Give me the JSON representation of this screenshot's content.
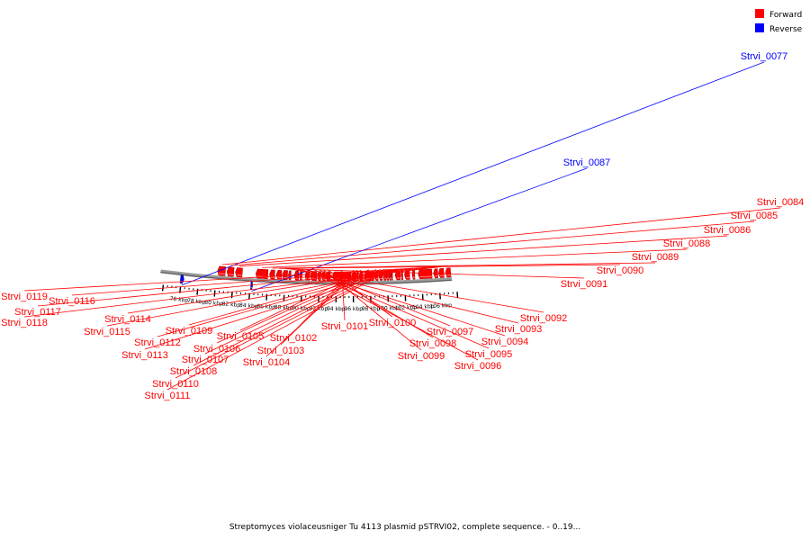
{
  "legend": [
    {
      "label": "Forward",
      "color": "#ff0000"
    },
    {
      "label": "Reverse",
      "color": "#0000ff"
    }
  ],
  "caption": "Streptomyces violaceusniger Tu 4113 plasmid pSTRVI02, complete sequence. - 0..19...",
  "colors": {
    "forward": "#ff0000",
    "reverse": "#0000ff",
    "backbone": "#808080",
    "tick": "#000000"
  },
  "ticks": [
    {
      "kbp": 76,
      "label": "76 kbp"
    },
    {
      "kbp": 78,
      "label": "78 kbp"
    },
    {
      "kbp": 80,
      "label": "80 kbp"
    },
    {
      "kbp": 82,
      "label": "82 kbp"
    },
    {
      "kbp": 84,
      "label": "84 kbp"
    },
    {
      "kbp": 86,
      "label": "86 kbp"
    },
    {
      "kbp": 88,
      "label": "88 kbp"
    },
    {
      "kbp": 90,
      "label": "90 kbp"
    },
    {
      "kbp": 92,
      "label": "92 kbp"
    },
    {
      "kbp": 94,
      "label": "94 kbp"
    },
    {
      "kbp": 96,
      "label": "96 kbp"
    },
    {
      "kbp": 98,
      "label": "98 kbp"
    },
    {
      "kbp": 100,
      "label": "100 kbp"
    },
    {
      "kbp": 102,
      "label": "102 kbp"
    },
    {
      "kbp": 104,
      "label": "104 kbp"
    },
    {
      "kbp": 106,
      "label": "106 kbp"
    }
  ],
  "genes": [
    {
      "name": "Strvi_0077",
      "strand": "reverse",
      "start": 75.9,
      "end": 76.3
    },
    {
      "name": "Strvi_0084",
      "strand": "forward",
      "start": 80.1,
      "end": 81.0
    },
    {
      "name": "Strvi_0085",
      "strand": "forward",
      "start": 81.2,
      "end": 82.0
    },
    {
      "name": "Strvi_0086",
      "strand": "forward",
      "start": 82.2,
      "end": 83.0
    },
    {
      "name": "Strvi_0087",
      "strand": "reverse",
      "start": 84.1,
      "end": 84.3
    },
    {
      "name": "Strvi_0088",
      "strand": "forward",
      "start": 84.6,
      "end": 86.0
    },
    {
      "name": "Strvi_0089",
      "strand": "forward",
      "start": 86.2,
      "end": 86.8
    },
    {
      "name": "Strvi_0090",
      "strand": "forward",
      "start": 87.0,
      "end": 87.6
    },
    {
      "name": "Strvi_0091",
      "strand": "forward",
      "start": 87.7,
      "end": 88.3
    },
    {
      "name": "Strvi_0092",
      "strand": "forward",
      "start": 88.4,
      "end": 88.7
    },
    {
      "name": "Strvi_0093",
      "strand": "forward",
      "start": 89.1,
      "end": 89.6
    },
    {
      "name": "Strvi_0094",
      "strand": "forward",
      "start": 89.7,
      "end": 90.0
    },
    {
      "name": "Strvi_0095",
      "strand": "forward",
      "start": 90.4,
      "end": 90.6
    },
    {
      "name": "Strvi_0096",
      "strand": "forward",
      "start": 90.6,
      "end": 90.9
    },
    {
      "name": "Strvi_0097",
      "strand": "forward",
      "start": 91.0,
      "end": 91.7
    },
    {
      "name": "Strvi_0098",
      "strand": "forward",
      "start": 91.8,
      "end": 92.2
    },
    {
      "name": "Strvi_0099",
      "strand": "forward",
      "start": 92.3,
      "end": 92.7
    },
    {
      "name": "Strvi_0100",
      "strand": "forward",
      "start": 92.8,
      "end": 93.3
    },
    {
      "name": "Strvi_0101",
      "strand": "forward",
      "start": 93.6,
      "end": 95.7
    },
    {
      "name": "Strvi_0102",
      "strand": "forward",
      "start": 95.8,
      "end": 96.3
    },
    {
      "name": "Strvi_0103",
      "strand": "forward",
      "start": 96.4,
      "end": 96.6
    },
    {
      "name": "Strvi_0104",
      "strand": "forward",
      "start": 96.7,
      "end": 97.1
    },
    {
      "name": "Strvi_0105",
      "strand": "forward",
      "start": 97.3,
      "end": 98.4
    },
    {
      "name": "Strvi_0106",
      "strand": "forward",
      "start": 98.5,
      "end": 98.9
    },
    {
      "name": "Strvi_0107",
      "strand": "forward",
      "start": 99.0,
      "end": 99.4
    },
    {
      "name": "Strvi_0108",
      "strand": "forward",
      "start": 99.5,
      "end": 99.8
    },
    {
      "name": "Strvi_0109",
      "strand": "forward",
      "start": 99.85,
      "end": 100.1
    },
    {
      "name": "Strvi_0110",
      "strand": "forward",
      "start": 100.15,
      "end": 100.4
    },
    {
      "name": "Strvi_0111",
      "strand": "forward",
      "start": 100.45,
      "end": 100.6
    },
    {
      "name": "Strvi_0112",
      "strand": "forward",
      "start": 100.9,
      "end": 101.5
    },
    {
      "name": "Strvi_0113",
      "strand": "forward",
      "start": 101.6,
      "end": 101.8
    },
    {
      "name": "Strvi_0114",
      "strand": "forward",
      "start": 102.0,
      "end": 102.6
    },
    {
      "name": "Strvi_0115",
      "strand": "forward",
      "start": 102.9,
      "end": 103.2
    },
    {
      "name": "Strvi_0116",
      "strand": "forward",
      "start": 103.6,
      "end": 105.2
    },
    {
      "name": "Strvi_0117",
      "strand": "forward",
      "start": 105.4,
      "end": 105.9
    },
    {
      "name": "Strvi_0118",
      "strand": "forward",
      "start": 106.0,
      "end": 106.6
    },
    {
      "name": "Strvi_0119",
      "strand": "forward",
      "start": 106.8,
      "end": 107.4
    }
  ]
}
